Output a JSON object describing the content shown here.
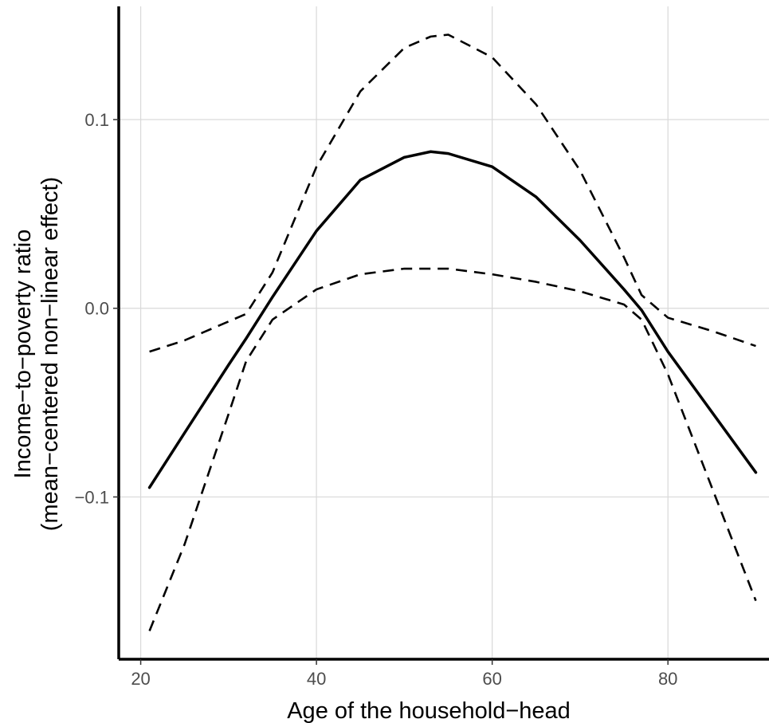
{
  "chart_data": {
    "type": "line",
    "xlabel": "Age of the household−head",
    "ylabel_line1": "Income−to−poverty ratio",
    "ylabel_line2": "(mean−centered non−linear effect)",
    "xlim": [
      17.5,
      91.5
    ],
    "ylim": [
      -0.186,
      0.16
    ],
    "x_ticks": [
      20,
      40,
      60,
      80
    ],
    "x_tick_labels": [
      "20",
      "40",
      "60",
      "80"
    ],
    "y_ticks": [
      -0.1,
      0.0,
      0.1
    ],
    "y_tick_labels": [
      "−0.1",
      "0.0",
      "0.1"
    ],
    "grid": true,
    "legend": "none",
    "x": [
      21,
      25,
      30,
      32,
      35,
      40,
      45,
      50,
      53,
      55,
      60,
      65,
      70,
      75,
      77,
      80,
      85,
      90
    ],
    "series": [
      {
        "style": "solid",
        "values": [
          -0.095,
          -0.066,
          -0.03,
          -0.016,
          0.006,
          0.041,
          0.068,
          0.08,
          0.083,
          0.082,
          0.075,
          0.059,
          0.036,
          0.01,
          -0.001,
          -0.023,
          -0.055,
          -0.087
        ]
      },
      {
        "style": "dashed",
        "values": [
          -0.023,
          -0.017,
          -0.007,
          -0.003,
          0.019,
          0.075,
          0.115,
          0.138,
          0.144,
          0.145,
          0.133,
          0.108,
          0.073,
          0.027,
          0.007,
          -0.005,
          -0.012,
          -0.02
        ]
      },
      {
        "style": "dashed",
        "values": [
          -0.171,
          -0.125,
          -0.056,
          -0.028,
          -0.006,
          0.01,
          0.018,
          0.021,
          0.021,
          0.021,
          0.018,
          0.014,
          0.009,
          0.002,
          -0.006,
          -0.035,
          -0.095,
          -0.155
        ]
      }
    ]
  }
}
